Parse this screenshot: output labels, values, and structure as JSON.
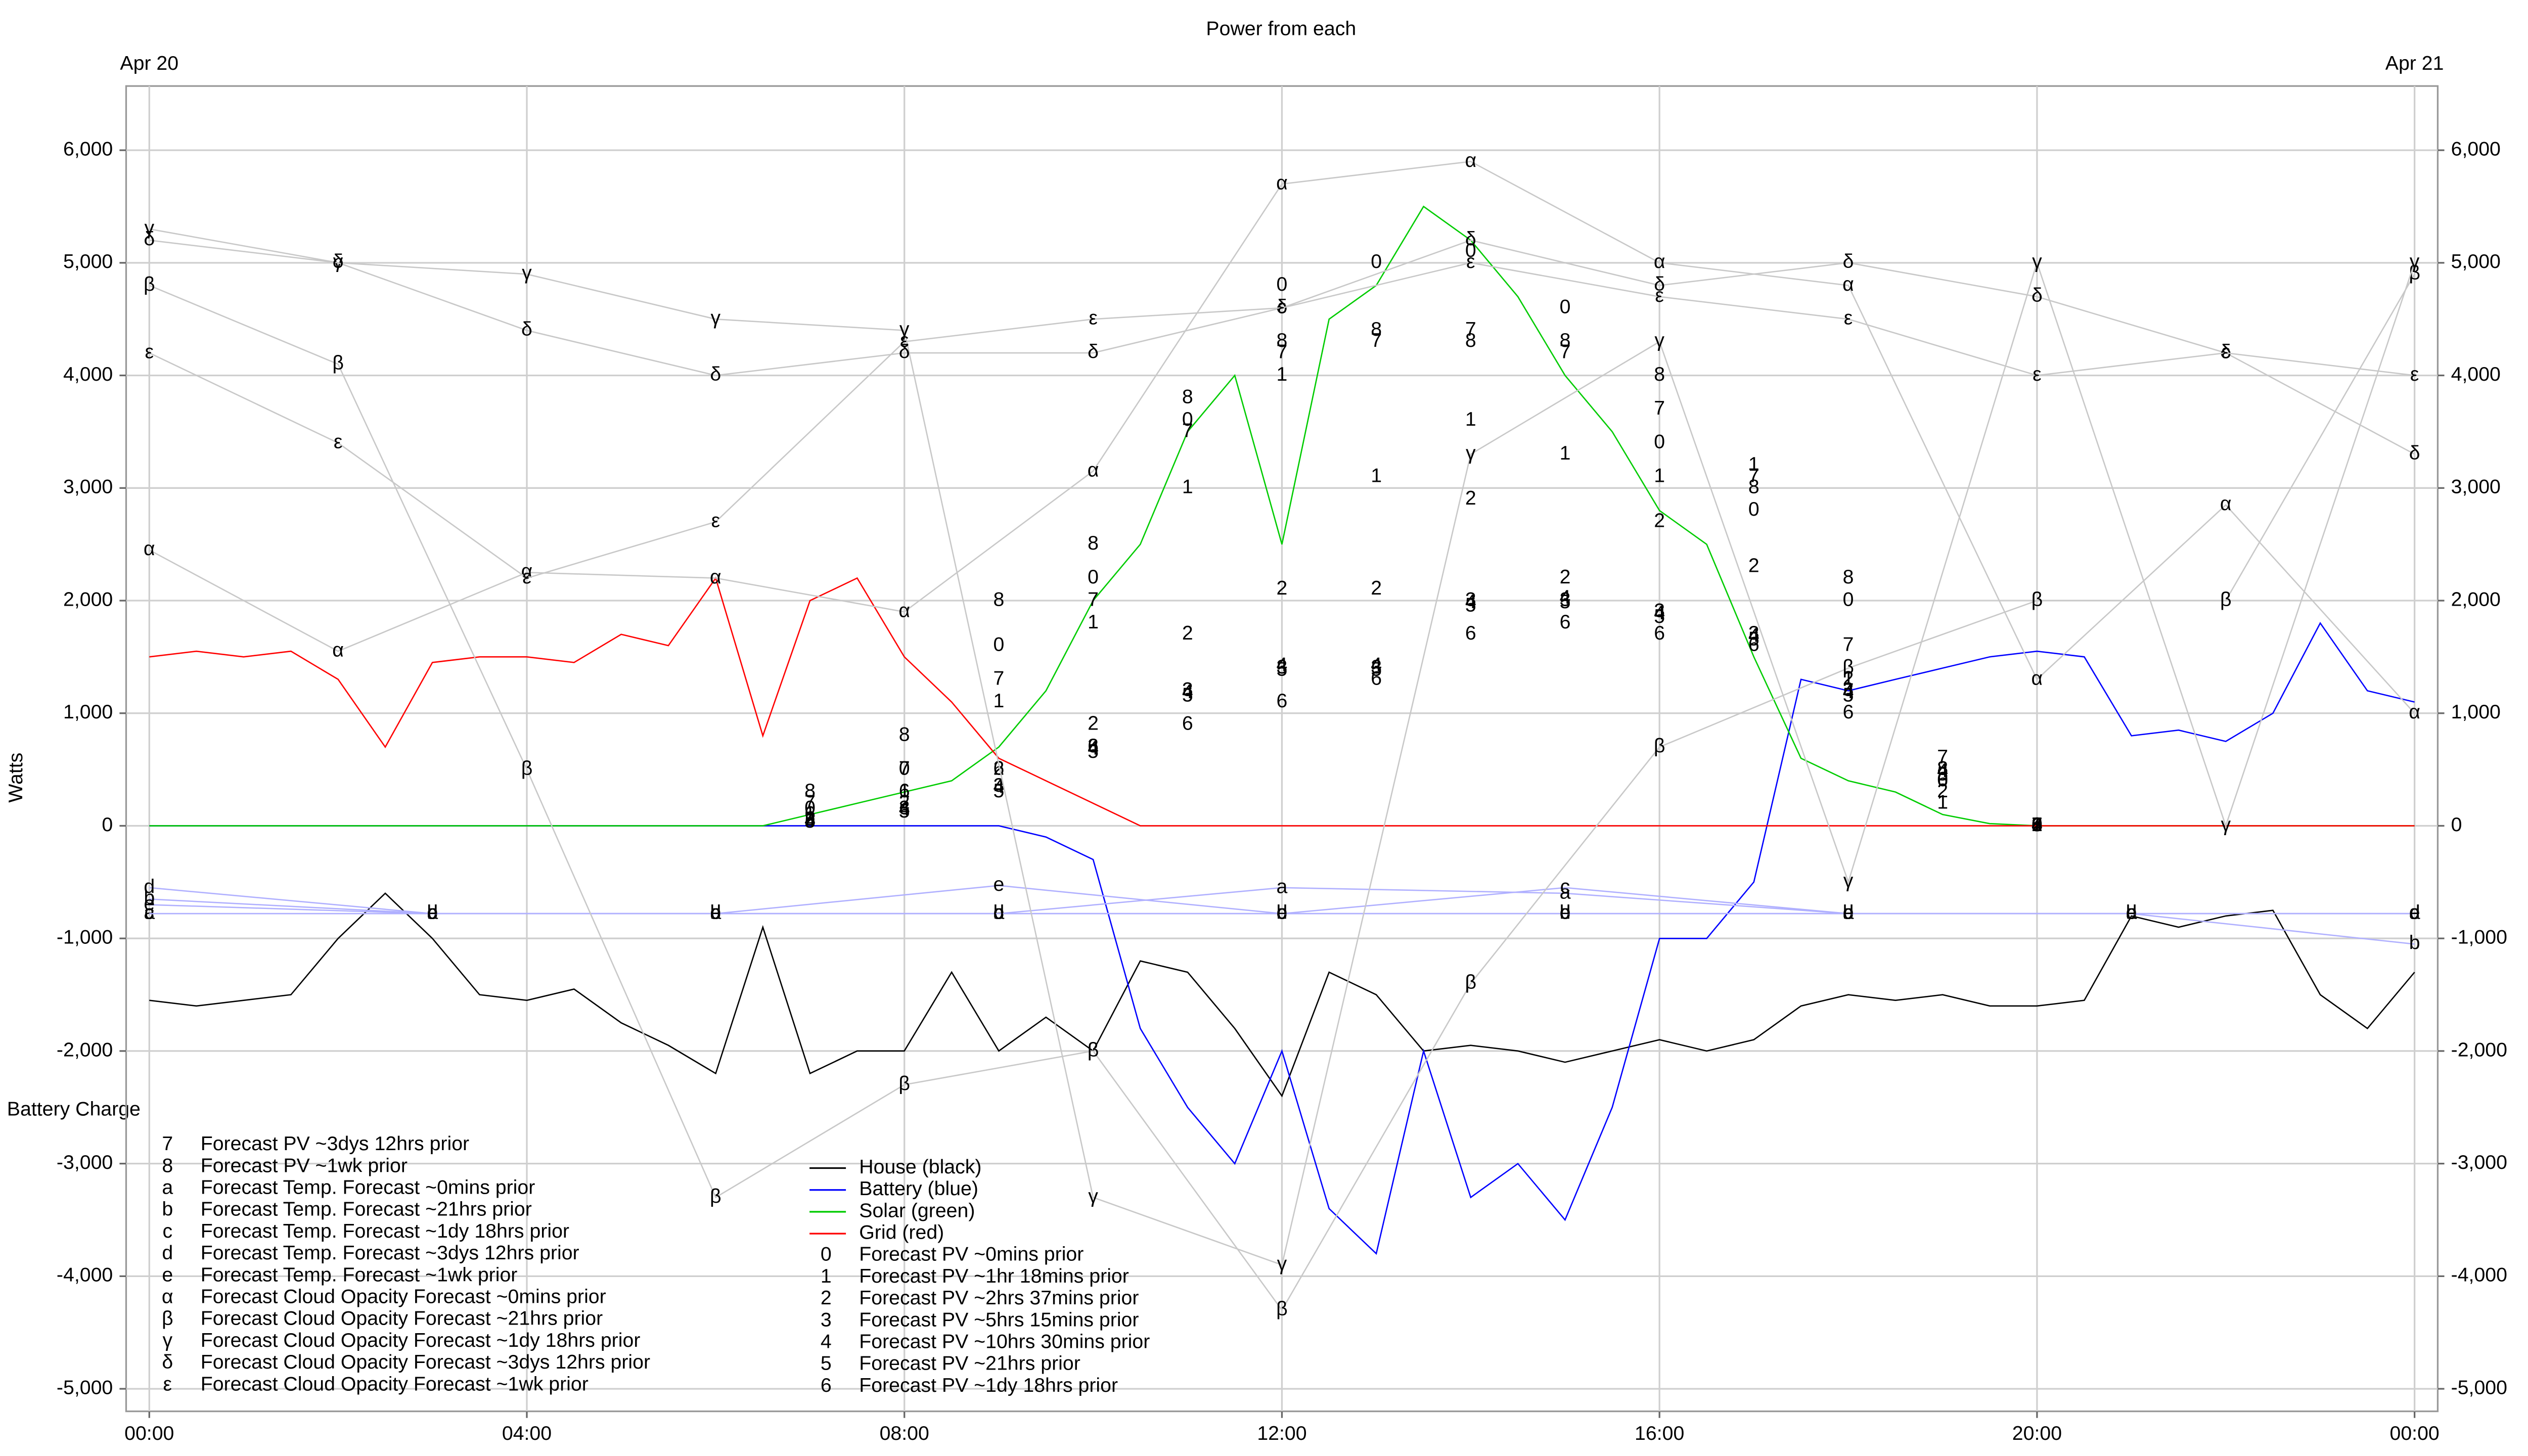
{
  "chart_data": {
    "type": "line",
    "title": "Power from each",
    "ylabel": "Watts",
    "annotation": "Battery Charge",
    "date_labels": [
      {
        "value": 0,
        "label": "Apr 20"
      },
      {
        "value": 24,
        "label": "Apr 21"
      }
    ],
    "xlim": [
      0,
      24
    ],
    "xticks": [
      {
        "value": 0,
        "label": "00:00"
      },
      {
        "value": 4,
        "label": "04:00"
      },
      {
        "value": 8,
        "label": "08:00"
      },
      {
        "value": 12,
        "label": "12:00"
      },
      {
        "value": 16,
        "label": "16:00"
      },
      {
        "value": 20,
        "label": "20:00"
      },
      {
        "value": 24,
        "label": "00:00"
      }
    ],
    "ylim": [
      -5200,
      6570
    ],
    "yticks": [
      {
        "value": -5000,
        "label": "-5,000"
      },
      {
        "value": -4000,
        "label": "-4,000"
      },
      {
        "value": -3000,
        "label": "-3,000"
      },
      {
        "value": -2000,
        "label": "-2,000"
      },
      {
        "value": -1000,
        "label": "-1,000"
      },
      0,
      {
        "value": 1000,
        "label": "1,000"
      },
      {
        "value": 2000,
        "label": "2,000"
      },
      {
        "value": 3000,
        "label": "3,000"
      },
      {
        "value": 4000,
        "label": "4,000"
      },
      {
        "value": 5000,
        "label": "5,000"
      },
      {
        "value": 6000,
        "label": "6,000"
      }
    ],
    "grid": true,
    "series": [
      {
        "name": "House (black)",
        "color": "#000000",
        "style": "line",
        "x": [
          0,
          0.5,
          1,
          1.5,
          2,
          2.5,
          3,
          3.5,
          4,
          4.5,
          5,
          5.5,
          6,
          6.5,
          7,
          7.5,
          8,
          8.5,
          9,
          9.5,
          10,
          10.5,
          11,
          11.5,
          12,
          12.5,
          13,
          13.5,
          14,
          14.5,
          15,
          15.5,
          16,
          16.5,
          17,
          17.5,
          18,
          18.5,
          19,
          19.5,
          20,
          20.5,
          21,
          21.5,
          22,
          22.5,
          23,
          23.5,
          24
        ],
        "values": [
          -1550,
          -1600,
          -1550,
          -1500,
          -1000,
          -600,
          -1000,
          -1500,
          -1550,
          -1450,
          -1750,
          -1950,
          -2200,
          -900,
          -2200,
          -2000,
          -2000,
          -1300,
          -2000,
          -1700,
          -2000,
          -1200,
          -1300,
          -1800,
          -2400,
          -1300,
          -1500,
          -2000,
          -1950,
          -2000,
          -2100,
          -2000,
          -1900,
          -2000,
          -1900,
          -1600,
          -1500,
          -1550,
          -1500,
          -1600,
          -1600,
          -1550,
          -800,
          -900,
          -800,
          -750,
          -1500,
          -1800,
          -1300
        ]
      },
      {
        "name": "Battery (blue)",
        "color": "#0000ff",
        "style": "line",
        "x": [
          0,
          0.5,
          1,
          1.5,
          2,
          2.5,
          3,
          3.5,
          4,
          4.5,
          5,
          5.5,
          6,
          6.5,
          7,
          7.5,
          8,
          8.5,
          9,
          9.5,
          10,
          10.5,
          11,
          11.5,
          12,
          12.5,
          13,
          13.5,
          14,
          14.5,
          15,
          15.5,
          16,
          16.5,
          17,
          17.5,
          18,
          18.5,
          19,
          19.5,
          20,
          20.5,
          21,
          21.5,
          22,
          22.5,
          23,
          23.5,
          24
        ],
        "values": [
          0,
          0,
          0,
          0,
          0,
          0,
          0,
          0,
          0,
          0,
          0,
          0,
          0,
          0,
          0,
          0,
          0,
          0,
          0,
          -100,
          -300,
          -1800,
          -2500,
          -3000,
          -2000,
          -3400,
          -3800,
          -2000,
          -3300,
          -3000,
          -3500,
          -2500,
          -1000,
          -1000,
          -500,
          1300,
          1200,
          1300,
          1400,
          1500,
          1550,
          1500,
          800,
          850,
          750,
          1000,
          1800,
          1200,
          1100
        ]
      },
      {
        "name": "Solar (green)",
        "color": "#00cc00",
        "style": "line",
        "x": [
          0,
          0.5,
          1,
          1.5,
          2,
          2.5,
          3,
          3.5,
          4,
          4.5,
          5,
          5.5,
          6,
          6.5,
          7,
          7.5,
          8,
          8.5,
          9,
          9.5,
          10,
          10.5,
          11,
          11.5,
          12,
          12.5,
          13,
          13.5,
          14,
          14.5,
          15,
          15.5,
          16,
          16.5,
          17,
          17.5,
          18,
          18.5,
          19,
          19.5,
          20,
          20.5,
          21,
          21.5,
          22,
          22.5,
          23,
          23.5,
          24
        ],
        "values": [
          0,
          0,
          0,
          0,
          0,
          0,
          0,
          0,
          0,
          0,
          0,
          0,
          0,
          0,
          100,
          200,
          300,
          400,
          700,
          1200,
          2000,
          2500,
          3500,
          4000,
          2500,
          4500,
          4800,
          5500,
          5200,
          4700,
          4000,
          3500,
          2800,
          2500,
          1500,
          600,
          400,
          300,
          100,
          20,
          0,
          0,
          0,
          0,
          0,
          0,
          0,
          0,
          0
        ]
      },
      {
        "name": "Grid (red)",
        "color": "#ff0000",
        "style": "line",
        "x": [
          0,
          0.5,
          1,
          1.5,
          2,
          2.5,
          3,
          3.5,
          4,
          4.5,
          5,
          5.5,
          6,
          6.5,
          7,
          7.5,
          8,
          8.5,
          9,
          9.5,
          10,
          10.5,
          11,
          11.5,
          12,
          12.5,
          13,
          13.5,
          14,
          14.5,
          15,
          15.5,
          16,
          16.5,
          17,
          17.5,
          18,
          18.5,
          19,
          19.5,
          20,
          20.5,
          21,
          21.5,
          22,
          22.5,
          23,
          23.5,
          24
        ],
        "values": [
          1500,
          1550,
          1500,
          1550,
          1300,
          700,
          1450,
          1500,
          1500,
          1450,
          1700,
          1600,
          2200,
          800,
          2000,
          2200,
          1500,
          1100,
          600,
          400,
          200,
          0,
          0,
          0,
          0,
          0,
          0,
          0,
          0,
          0,
          0,
          0,
          0,
          0,
          0,
          0,
          0,
          0,
          0,
          0,
          0,
          0,
          0,
          0,
          0,
          0,
          0,
          0,
          0
        ]
      },
      {
        "name": "Forecast PV ~0mins prior",
        "marker": "0",
        "color": "#000000",
        "style": "markers",
        "x": [
          7,
          8,
          9,
          10,
          11,
          12,
          13,
          14,
          15,
          16,
          17,
          18,
          19,
          20
        ],
        "values": [
          150,
          500,
          1600,
          2200,
          3600,
          4800,
          5000,
          5100,
          4600,
          3400,
          2800,
          2000,
          400,
          0
        ]
      },
      {
        "name": "Forecast PV ~1hr 18mins prior",
        "marker": "1",
        "color": "#000000",
        "style": "markers",
        "x": [
          7,
          8,
          9,
          10,
          11,
          12,
          13,
          14,
          15,
          16,
          17,
          18,
          19,
          20
        ],
        "values": [
          100,
          300,
          1100,
          1800,
          3000,
          4000,
          3100,
          3600,
          3300,
          3100,
          3200,
          1300,
          200,
          0
        ]
      },
      {
        "name": "Forecast PV ~2hrs 37mins prior",
        "marker": "2",
        "color": "#000000",
        "style": "markers",
        "x": [
          7,
          8,
          9,
          10,
          11,
          12,
          13,
          14,
          15,
          16,
          17,
          18,
          19,
          20
        ],
        "values": [
          50,
          200,
          500,
          900,
          1700,
          2100,
          2100,
          2900,
          2200,
          2700,
          2300,
          1300,
          300,
          0
        ]
      },
      {
        "name": "Forecast PV ~5hrs 15mins prior",
        "marker": "3",
        "color": "#000000",
        "style": "markers",
        "x": [
          7,
          8,
          9,
          10,
          11,
          12,
          13,
          14,
          15,
          16,
          17,
          18,
          19,
          20
        ],
        "values": [
          50,
          150,
          350,
          700,
          1200,
          1400,
          1400,
          2000,
          2000,
          1900,
          1700,
          1200,
          500,
          0
        ]
      },
      {
        "name": "Forecast PV ~10hrs 30mins prior",
        "marker": "4",
        "color": "#000000",
        "style": "markers",
        "x": [
          7,
          8,
          9,
          10,
          11,
          12,
          13,
          14,
          15,
          16,
          17,
          18,
          19,
          20
        ],
        "values": [
          40,
          140,
          340,
          680,
          1180,
          1420,
          1420,
          1980,
          2020,
          1880,
          1680,
          1180,
          480,
          0
        ]
      },
      {
        "name": "Forecast PV ~21hrs prior",
        "marker": "5",
        "color": "#000000",
        "style": "markers",
        "x": [
          7,
          8,
          9,
          10,
          11,
          12,
          13,
          14,
          15,
          16,
          17,
          18,
          19,
          20
        ],
        "values": [
          30,
          120,
          300,
          650,
          1150,
          1380,
          1380,
          1950,
          1980,
          1850,
          1650,
          1150,
          450,
          0
        ]
      },
      {
        "name": "Forecast PV ~1dy 18hrs prior",
        "marker": "6",
        "color": "#000000",
        "style": "markers",
        "x": [
          7,
          8,
          9,
          10,
          11,
          12,
          13,
          14,
          15,
          16,
          17,
          18,
          19,
          20
        ],
        "values": [
          100,
          300,
          500,
          700,
          900,
          1100,
          1300,
          1700,
          1800,
          1700,
          1600,
          1000,
          400,
          0
        ]
      },
      {
        "name": "Forecast PV ~3dys 12hrs prior",
        "marker": "7",
        "color": "#000000",
        "style": "markers",
        "x": [
          7,
          8,
          9,
          10,
          11,
          12,
          13,
          14,
          15,
          16,
          17,
          18,
          19,
          20
        ],
        "values": [
          200,
          500,
          1300,
          2000,
          3500,
          4200,
          4300,
          4400,
          4200,
          3700,
          3100,
          1600,
          600,
          0
        ]
      },
      {
        "name": "Forecast PV ~1wk prior",
        "marker": "8",
        "color": "#000000",
        "style": "markers",
        "x": [
          7,
          8,
          9,
          10,
          11,
          12,
          13,
          14,
          15,
          16,
          17,
          18,
          19,
          20
        ],
        "values": [
          300,
          800,
          2000,
          2500,
          3800,
          4300,
          4400,
          4300,
          4300,
          4000,
          3000,
          2200,
          500,
          0
        ]
      },
      {
        "name": "Forecast Temp. Forecast ~0mins prior",
        "marker": "a",
        "color": "#b0b0ff",
        "style": "line+markers",
        "x": [
          0,
          3,
          6,
          9,
          12,
          15,
          18,
          21,
          24
        ],
        "values": [
          -780,
          -780,
          -780,
          -780,
          -550,
          -600,
          -780,
          -780,
          -780
        ]
      },
      {
        "name": "Forecast Temp. Forecast ~21hrs prior",
        "marker": "b",
        "color": "#b0b0ff",
        "style": "line+markers",
        "x": [
          0,
          3,
          6,
          9,
          12,
          15,
          18,
          21,
          24
        ],
        "values": [
          -650,
          -780,
          -780,
          -780,
          -780,
          -780,
          -780,
          -780,
          -1050
        ]
      },
      {
        "name": "Forecast Temp. Forecast ~1dy 18hrs prior",
        "marker": "c",
        "color": "#b0b0ff",
        "style": "line+markers",
        "x": [
          0,
          3,
          6,
          9,
          12,
          15,
          18,
          21,
          24
        ],
        "values": [
          -780,
          -780,
          -780,
          -780,
          -780,
          -550,
          -780,
          -780,
          -780
        ]
      },
      {
        "name": "Forecast Temp. Forecast ~3dys 12hrs prior",
        "marker": "d",
        "color": "#b0b0ff",
        "style": "line+markers",
        "x": [
          0,
          3,
          6,
          9,
          12,
          15,
          18,
          21,
          24
        ],
        "values": [
          -550,
          -780,
          -780,
          -780,
          -780,
          -780,
          -780,
          -780,
          -780
        ]
      },
      {
        "name": "Forecast Temp. Forecast ~1wk prior",
        "marker": "e",
        "color": "#b0b0ff",
        "style": "line+markers",
        "x": [
          0,
          3,
          6,
          9,
          12,
          15,
          18,
          21,
          24
        ],
        "values": [
          -700,
          -780,
          -780,
          -530,
          -780,
          -780,
          -780,
          -780,
          -780
        ]
      },
      {
        "name": "Forecast Cloud Opacity Forecast ~0mins prior",
        "marker": "α",
        "color": "#c8c8c8",
        "style": "line+markers",
        "x": [
          0,
          2,
          4,
          6,
          8,
          10,
          12,
          14,
          16,
          18,
          20,
          22,
          24
        ],
        "values": [
          2450,
          1550,
          2250,
          2200,
          1900,
          3150,
          5700,
          5900,
          5000,
          4800,
          1300,
          2850,
          1000
        ]
      },
      {
        "name": "Forecast Cloud Opacity Forecast ~21hrs prior",
        "marker": "β",
        "color": "#c8c8c8",
        "style": "line+markers",
        "x": [
          0,
          2,
          4,
          6,
          8,
          10,
          12,
          14,
          16,
          18,
          20,
          22,
          24
        ],
        "values": [
          4800,
          4100,
          500,
          -3300,
          -2300,
          -2000,
          -4300,
          -1400,
          700,
          1400,
          2000,
          2000,
          4900
        ]
      },
      {
        "name": "Forecast Cloud Opacity Forecast ~1dy 18hrs prior",
        "marker": "γ",
        "color": "#c8c8c8",
        "style": "line+markers",
        "x": [
          0,
          2,
          4,
          6,
          8,
          10,
          12,
          14,
          16,
          18,
          20,
          22,
          24
        ],
        "values": [
          5300,
          5000,
          4900,
          4500,
          4400,
          -3300,
          -3900,
          3300,
          4300,
          -500,
          5000,
          0,
          5000
        ]
      },
      {
        "name": "Forecast Cloud Opacity Forecast ~3dys 12hrs prior",
        "marker": "δ",
        "color": "#c8c8c8",
        "style": "line+markers",
        "x": [
          0,
          2,
          4,
          6,
          8,
          10,
          12,
          14,
          16,
          18,
          20,
          22,
          24
        ],
        "values": [
          5200,
          5000,
          4400,
          4000,
          4200,
          4200,
          4600,
          5200,
          4800,
          5000,
          4700,
          4200,
          3300
        ]
      },
      {
        "name": "Forecast Cloud Opacity Forecast ~1wk prior",
        "marker": "ε",
        "color": "#c8c8c8",
        "style": "line+markers",
        "x": [
          0,
          2,
          4,
          6,
          8,
          10,
          12,
          14,
          16,
          18,
          20,
          22,
          24
        ],
        "values": [
          4200,
          3400,
          2200,
          2700,
          4300,
          4500,
          4600,
          5000,
          4700,
          4500,
          4000,
          4200,
          4000
        ]
      }
    ]
  }
}
